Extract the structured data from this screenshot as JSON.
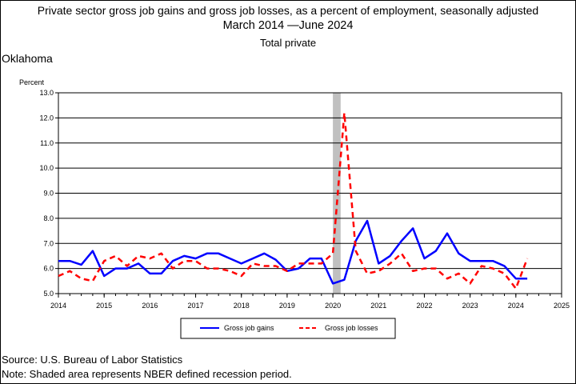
{
  "titles": {
    "line1": "Private sector gross job gains and gross job losses, as a percent of employment, seasonally adjusted",
    "line2": "March 2014 —June 2024",
    "line3": "Total private"
  },
  "region": "Oklahoma",
  "footer": {
    "source": "Source: U.S. Bureau of Labor Statistics",
    "note": "Note: Shaded area represents NBER defined recession period."
  },
  "chart_data": {
    "type": "line",
    "ylabel": "Percent",
    "ylim": [
      5.0,
      13.0
    ],
    "yticks": [
      "5.0",
      "6.0",
      "7.0",
      "8.0",
      "9.0",
      "10.0",
      "11.0",
      "12.0",
      "13.0"
    ],
    "xlim": [
      2014,
      2025
    ],
    "xticks": [
      "2014",
      "2015",
      "2016",
      "2017",
      "2018",
      "2019",
      "2020",
      "2021",
      "2022",
      "2023",
      "2024",
      "2025"
    ],
    "grid": "horizontal",
    "legend_position": "bottom",
    "recession": [
      2020.0,
      2020.17
    ],
    "series": [
      {
        "name": "Gross job gains",
        "color": "#0000ff",
        "style": "solid",
        "x": [
          2014.0,
          2014.25,
          2014.5,
          2014.75,
          2015.0,
          2015.25,
          2015.5,
          2015.75,
          2016.0,
          2016.25,
          2016.5,
          2016.75,
          2017.0,
          2017.25,
          2017.5,
          2017.75,
          2018.0,
          2018.25,
          2018.5,
          2018.75,
          2019.0,
          2019.25,
          2019.5,
          2019.75,
          2020.0,
          2020.25,
          2020.5,
          2020.75,
          2021.0,
          2021.25,
          2021.5,
          2021.75,
          2022.0,
          2022.25,
          2022.5,
          2022.75,
          2023.0,
          2023.25,
          2023.5,
          2023.75,
          2024.0,
          2024.25
        ],
        "y": [
          6.3,
          6.3,
          6.15,
          6.7,
          5.7,
          6.0,
          6.0,
          6.2,
          5.8,
          5.8,
          6.3,
          6.5,
          6.4,
          6.6,
          6.6,
          6.4,
          6.2,
          6.4,
          6.6,
          6.35,
          5.9,
          6.0,
          6.4,
          6.4,
          5.4,
          5.55,
          7.1,
          7.9,
          6.2,
          6.5,
          7.1,
          7.6,
          6.4,
          6.7,
          7.4,
          6.6,
          6.3,
          6.3,
          6.3,
          6.1,
          5.6,
          5.6
        ]
      },
      {
        "name": "Gross job losses",
        "color": "#ff0000",
        "style": "dashed",
        "x": [
          2014.0,
          2014.25,
          2014.5,
          2014.75,
          2015.0,
          2015.25,
          2015.5,
          2015.75,
          2016.0,
          2016.25,
          2016.5,
          2016.75,
          2017.0,
          2017.25,
          2017.5,
          2017.75,
          2018.0,
          2018.25,
          2018.5,
          2018.75,
          2019.0,
          2019.25,
          2019.5,
          2019.75,
          2020.0,
          2020.25,
          2020.5,
          2020.75,
          2021.0,
          2021.25,
          2021.5,
          2021.75,
          2022.0,
          2022.25,
          2022.5,
          2022.75,
          2023.0,
          2023.25,
          2023.5,
          2023.75,
          2024.0,
          2024.25
        ],
        "y": [
          5.7,
          5.9,
          5.6,
          5.5,
          6.3,
          6.5,
          6.1,
          6.5,
          6.4,
          6.6,
          6.0,
          6.3,
          6.3,
          6.0,
          6.0,
          5.9,
          5.7,
          6.2,
          6.1,
          6.1,
          5.9,
          6.2,
          6.2,
          6.2,
          6.6,
          12.2,
          6.7,
          5.8,
          5.9,
          6.2,
          6.6,
          5.9,
          6.0,
          6.0,
          5.6,
          5.8,
          5.4,
          6.1,
          6.0,
          5.8,
          5.2,
          6.4
        ]
      }
    ]
  }
}
